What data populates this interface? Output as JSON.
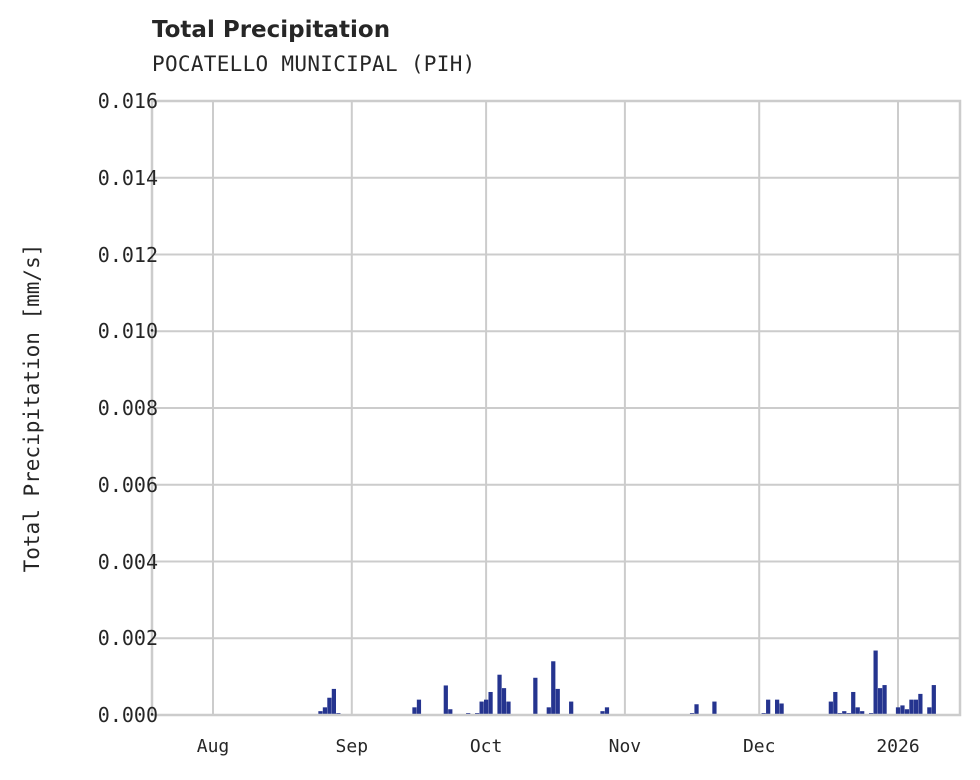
{
  "chart_data": {
    "type": "bar",
    "title": "Total Precipitation",
    "subtitle": "POCATELLO MUNICIPAL (PIH)",
    "xlabel": "",
    "ylabel": "Total Precipitation [mm/s]",
    "ylim": [
      0,
      0.016
    ],
    "yticks": [
      "0.000",
      "0.002",
      "0.004",
      "0.006",
      "0.008",
      "0.010",
      "0.012",
      "0.014",
      "0.016"
    ],
    "xticks": [
      "Aug",
      "Sep",
      "Oct",
      "Nov",
      "Dec",
      "2026"
    ],
    "xlim": [
      "2025-07-18",
      "2026-01-15"
    ],
    "grid": true,
    "bar_color": "#25348f",
    "series": [
      {
        "name": "Total Precipitation",
        "points": [
          [
            "2025-08-25",
            0.0001
          ],
          [
            "2025-08-26",
            0.0002
          ],
          [
            "2025-08-27",
            0.00045
          ],
          [
            "2025-08-28",
            0.00068
          ],
          [
            "2025-08-29",
            5e-05
          ],
          [
            "2025-09-15",
            0.0002
          ],
          [
            "2025-09-16",
            0.0004
          ],
          [
            "2025-09-22",
            0.00077
          ],
          [
            "2025-09-23",
            0.00015
          ],
          [
            "2025-09-27",
            5e-05
          ],
          [
            "2025-09-29",
            5e-05
          ],
          [
            "2025-09-30",
            0.00035
          ],
          [
            "2025-10-01",
            0.0004
          ],
          [
            "2025-10-02",
            0.0006
          ],
          [
            "2025-10-04",
            0.00105
          ],
          [
            "2025-10-05",
            0.0007
          ],
          [
            "2025-10-06",
            0.00035
          ],
          [
            "2025-10-12",
            0.00097
          ],
          [
            "2025-10-15",
            0.0002
          ],
          [
            "2025-10-16",
            0.0014
          ],
          [
            "2025-10-17",
            0.00068
          ],
          [
            "2025-10-20",
            0.00035
          ],
          [
            "2025-10-27",
            0.0001
          ],
          [
            "2025-10-28",
            0.0002
          ],
          [
            "2025-11-16",
            5e-05
          ],
          [
            "2025-11-17",
            0.00028
          ],
          [
            "2025-11-21",
            0.00035
          ],
          [
            "2025-12-02",
            5e-05
          ],
          [
            "2025-12-03",
            0.0004
          ],
          [
            "2025-12-05",
            0.0004
          ],
          [
            "2025-12-06",
            0.0003
          ],
          [
            "2025-12-17",
            0.00035
          ],
          [
            "2025-12-18",
            0.0006
          ],
          [
            "2025-12-19",
            5e-05
          ],
          [
            "2025-12-20",
            0.0001
          ],
          [
            "2025-12-21",
            5e-05
          ],
          [
            "2025-12-22",
            0.0006
          ],
          [
            "2025-12-23",
            0.0002
          ],
          [
            "2025-12-24",
            0.0001
          ],
          [
            "2025-12-26",
            5e-05
          ],
          [
            "2025-12-27",
            0.00168
          ],
          [
            "2025-12-28",
            0.0007
          ],
          [
            "2025-12-29",
            0.00078
          ],
          [
            "2026-01-01",
            0.0002
          ],
          [
            "2026-01-02",
            0.00025
          ],
          [
            "2026-01-03",
            0.00015
          ],
          [
            "2026-01-04",
            0.0004
          ],
          [
            "2026-01-05",
            0.0004
          ],
          [
            "2026-01-06",
            0.00055
          ],
          [
            "2026-01-08",
            0.0002
          ],
          [
            "2026-01-09",
            0.00078
          ]
        ]
      }
    ]
  }
}
